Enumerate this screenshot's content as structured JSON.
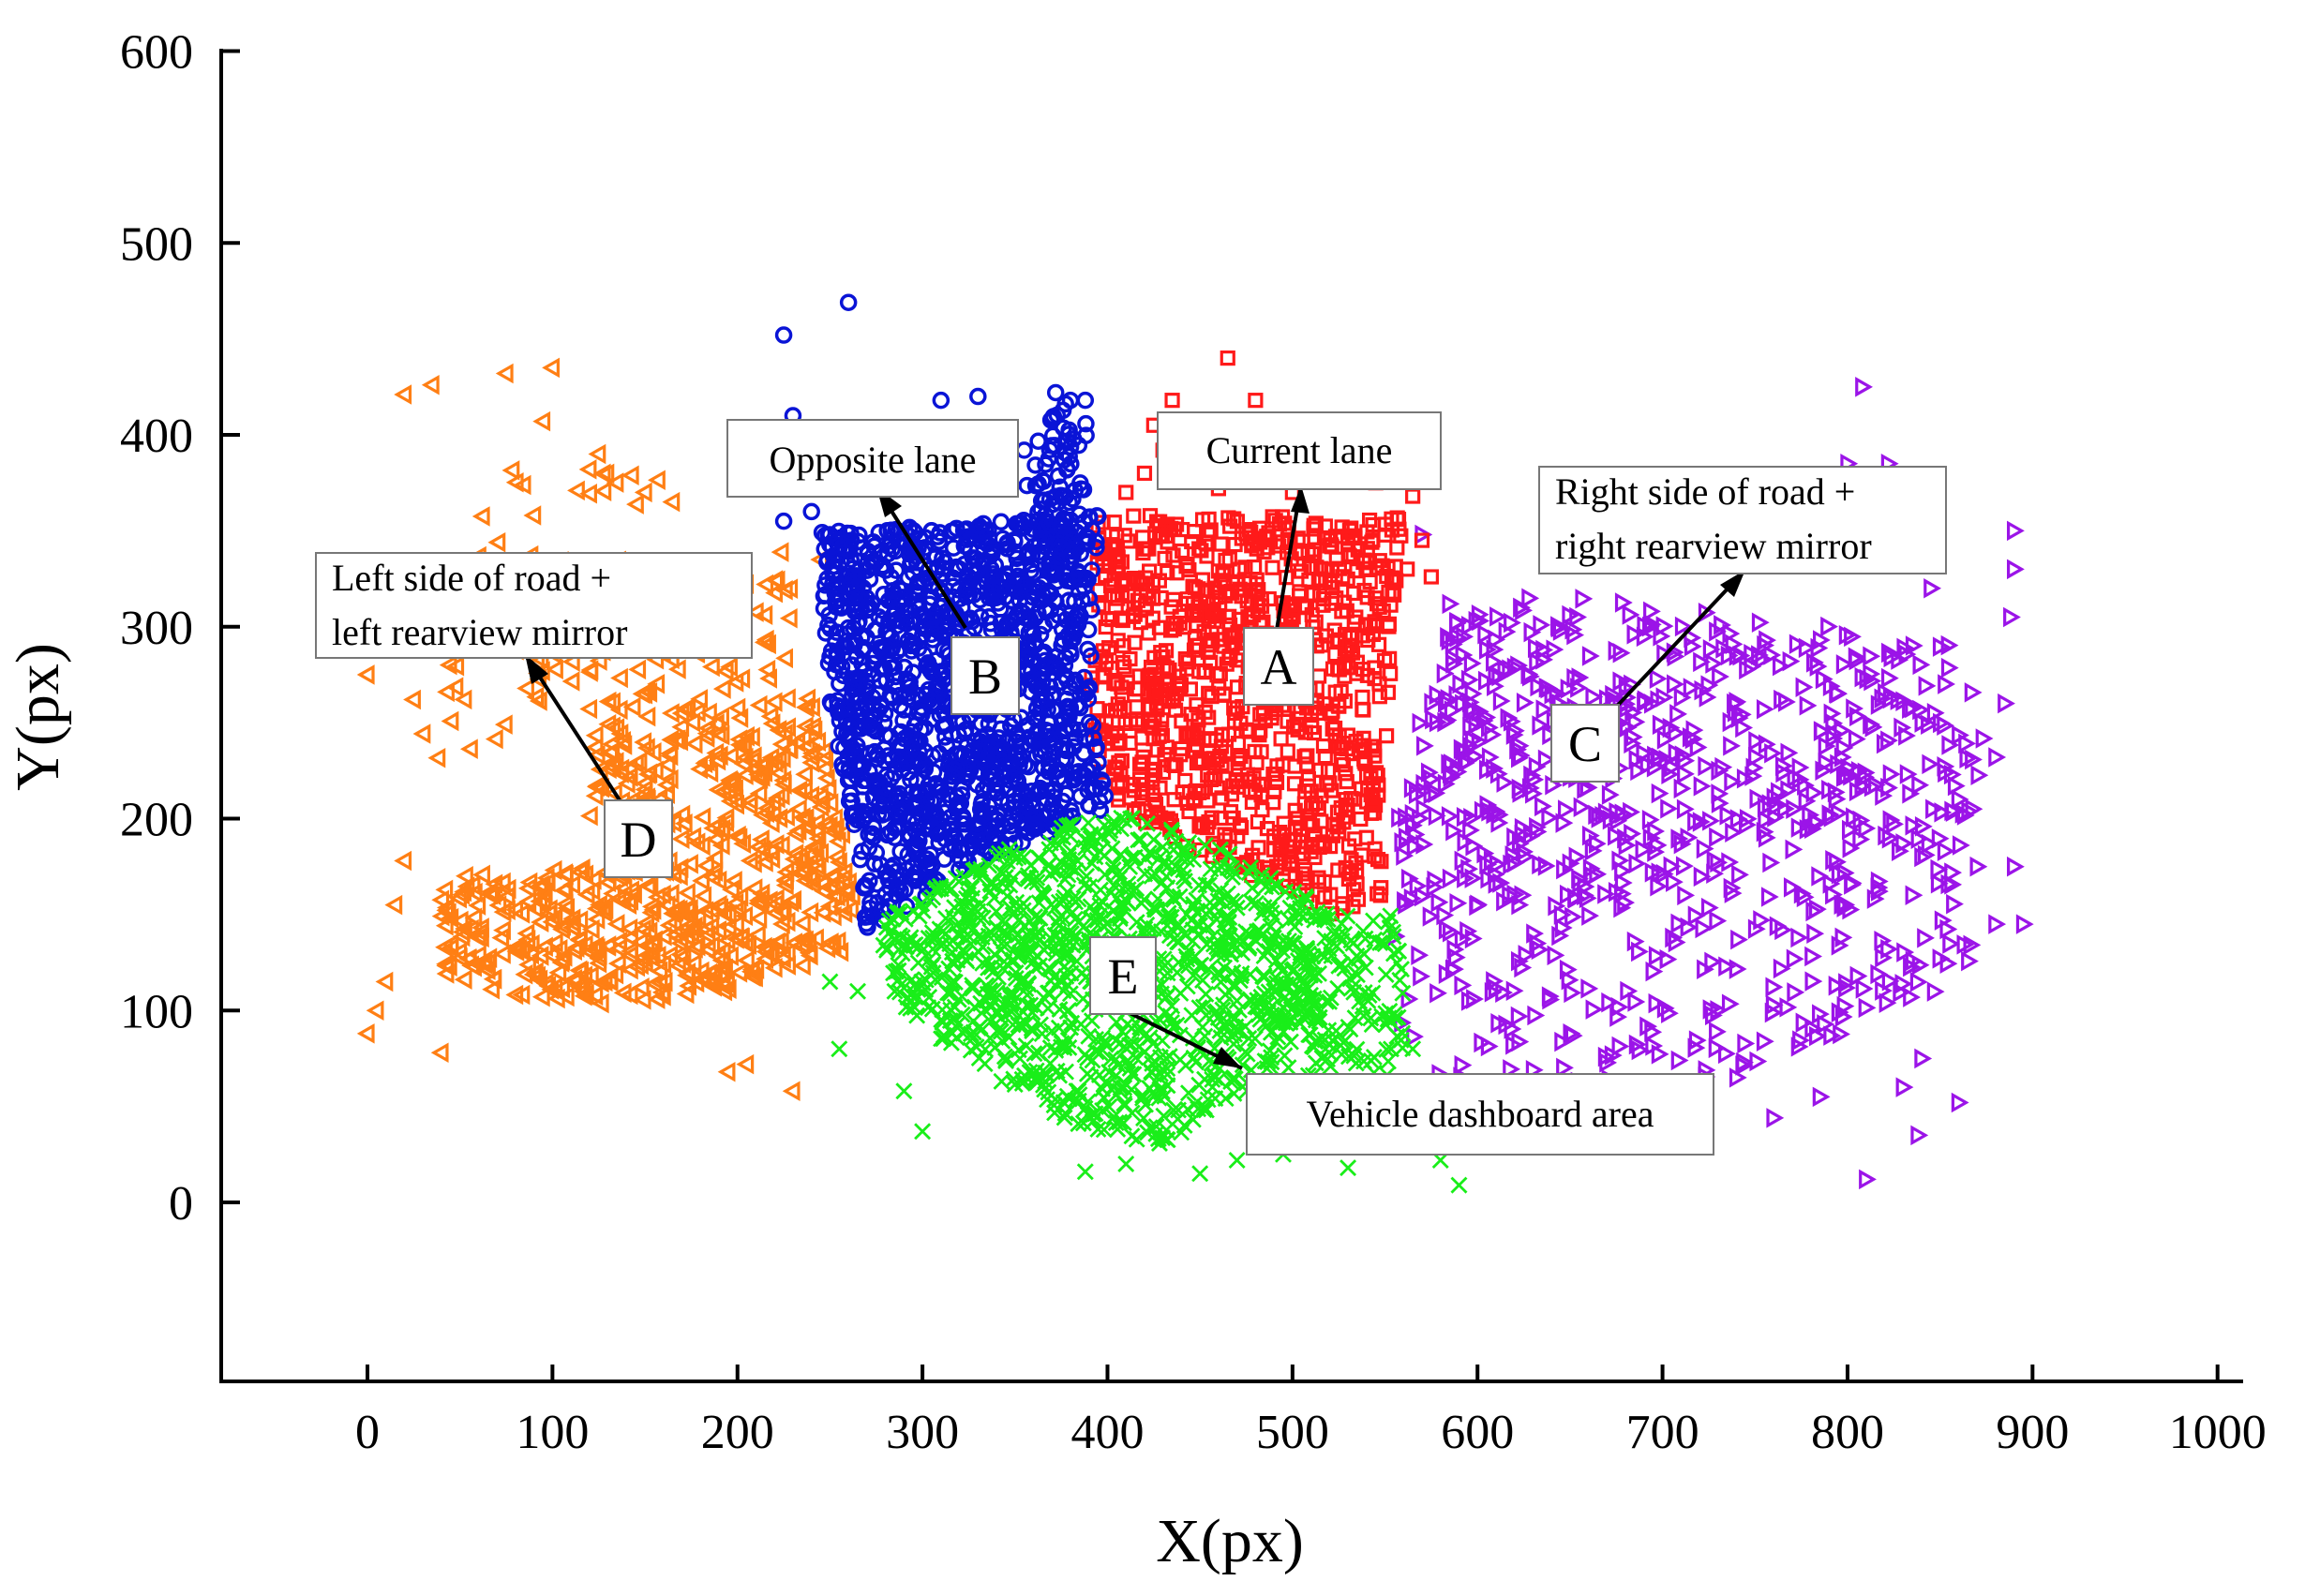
{
  "chart_data": {
    "type": "scatter",
    "title": "",
    "xlabel": "X(px)",
    "ylabel": "Y(px)",
    "xlim": [
      -80,
      1000
    ],
    "ylim": [
      -90,
      600
    ],
    "xticks": [
      0,
      100,
      200,
      300,
      400,
      500,
      600,
      700,
      800,
      900,
      1000
    ],
    "yticks": [
      0,
      100,
      200,
      300,
      400,
      500,
      600
    ],
    "grid": false,
    "legend": "none",
    "series": [
      {
        "key": "A",
        "marker": "square",
        "color": "#ff1a1a",
        "regions": [
          {
            "count": 950,
            "poly": [
              [
                395,
                358
              ],
              [
                560,
                358
              ],
              [
                548,
                205
              ],
              [
                548,
                150
              ],
              [
                520,
                150
              ],
              [
                400,
                205
              ],
              [
                390,
                260
              ]
            ]
          }
        ],
        "points": [
          [
            465,
            440
          ],
          [
            480,
            418
          ],
          [
            435,
            418
          ],
          [
            425,
            405
          ],
          [
            430,
            392
          ],
          [
            420,
            380
          ],
          [
            410,
            370
          ],
          [
            460,
            372
          ],
          [
            500,
            370
          ],
          [
            545,
            375
          ],
          [
            565,
            368
          ],
          [
            570,
            345
          ],
          [
            562,
            330
          ],
          [
            552,
            318
          ],
          [
            575,
            326
          ]
        ]
      },
      {
        "key": "B",
        "marker": "circle",
        "color": "#0a14d6",
        "regions": [
          {
            "count": 1400,
            "poly": [
              [
                245,
                350
              ],
              [
                395,
                358
              ],
              [
                390,
                260
              ],
              [
                400,
                205
              ],
              [
                335,
                180
              ],
              [
                270,
                140
              ],
              [
                262,
                200
              ],
              [
                248,
                270
              ]
            ]
          },
          {
            "count": 70,
            "poly": [
              [
                352,
                340
              ],
              [
                385,
                338
              ],
              [
                392,
                410
              ],
              [
                375,
                420
              ],
              [
                358,
                395
              ]
            ]
          }
        ],
        "points": [
          [
            260,
            469
          ],
          [
            225,
            452
          ],
          [
            230,
            410
          ],
          [
            310,
            418
          ],
          [
            330,
            420
          ],
          [
            340,
            400
          ],
          [
            355,
            392
          ],
          [
            372,
            422
          ],
          [
            380,
            418
          ],
          [
            388,
            418
          ],
          [
            225,
            355
          ],
          [
            240,
            360
          ],
          [
            250,
            348
          ]
        ]
      },
      {
        "key": "C",
        "marker": "triangle-right",
        "color": "#9b14e8",
        "regions": [
          {
            "count": 480,
            "poly": [
              [
                580,
                315
              ],
              [
                700,
                315
              ],
              [
                790,
                300
              ],
              [
                790,
                180
              ],
              [
                640,
                155
              ],
              [
                560,
                160
              ],
              [
                555,
                210
              ],
              [
                570,
                260
              ]
            ]
          },
          {
            "count": 240,
            "poly": [
              [
                555,
                160
              ],
              [
                640,
                155
              ],
              [
                790,
                180
              ],
              [
                860,
                175
              ],
              [
                870,
                120
              ],
              [
                780,
                80
              ],
              [
                650,
                40
              ],
              [
                570,
                50
              ],
              [
                555,
                100
              ]
            ]
          },
          {
            "count": 120,
            "poly": [
              [
                790,
                300
              ],
              [
                860,
                290
              ],
              [
                880,
                230
              ],
              [
                860,
                175
              ],
              [
                790,
                180
              ]
            ]
          }
        ],
        "points": [
          [
            808,
            425
          ],
          [
            800,
            385
          ],
          [
            822,
            385
          ],
          [
            890,
            350
          ],
          [
            890,
            330
          ],
          [
            888,
            305
          ],
          [
            845,
            320
          ],
          [
            570,
            348
          ],
          [
            640,
            360
          ],
          [
            860,
            210
          ],
          [
            895,
            145
          ],
          [
            880,
            145
          ],
          [
            890,
            175
          ],
          [
            870,
            175
          ],
          [
            810,
            12
          ],
          [
            830,
            60
          ],
          [
            840,
            75
          ],
          [
            860,
            52
          ],
          [
            838,
            35
          ],
          [
            785,
            55
          ],
          [
            740,
            65
          ],
          [
            760,
            44
          ],
          [
            880,
            232
          ],
          [
            885,
            260
          ]
        ]
      },
      {
        "key": "D",
        "marker": "triangle-left",
        "color": "#ff7f14",
        "regions": [
          {
            "count": 420,
            "poly": [
              [
                40,
                170
              ],
              [
                200,
                180
              ],
              [
                265,
                170
              ],
              [
                258,
                130
              ],
              [
                200,
                110
              ],
              [
                100,
                100
              ],
              [
                40,
                120
              ]
            ]
          },
          {
            "count": 250,
            "poly": [
              [
                120,
                250
              ],
              [
                240,
                265
              ],
              [
                255,
                215
              ],
              [
                260,
                160
              ],
              [
                200,
                180
              ],
              [
                120,
                200
              ]
            ]
          },
          {
            "count": 100,
            "poly": [
              [
                60,
                300
              ],
              [
                230,
                345
              ],
              [
                235,
                265
              ],
              [
                120,
                250
              ]
            ]
          },
          {
            "count": 45,
            "poly": [
              [
                20,
                300
              ],
              [
                80,
                390
              ],
              [
                160,
                390
              ],
              [
                150,
                300
              ],
              [
                80,
                240
              ],
              [
                20,
                200
              ]
            ]
          }
        ],
        "points": [
          [
            20,
            421
          ],
          [
            35,
            426
          ],
          [
            75,
            432
          ],
          [
            100,
            435
          ],
          [
            95,
            407
          ],
          [
            125,
            390
          ],
          [
            120,
            382
          ],
          [
            150,
            370
          ],
          [
            165,
            365
          ],
          [
            90,
            358
          ],
          [
            0,
            88
          ],
          [
            5,
            100
          ],
          [
            10,
            115
          ],
          [
            15,
            155
          ],
          [
            20,
            178
          ],
          [
            25,
            262
          ],
          [
            0,
            275
          ],
          [
            40,
            78
          ],
          [
            195,
            68
          ],
          [
            230,
            58
          ],
          [
            205,
            72
          ],
          [
            245,
            335
          ]
        ]
      },
      {
        "key": "E",
        "marker": "x",
        "color": "#19ee19",
        "regions": [
          {
            "count": 1100,
            "poly": [
              [
                275,
                145
              ],
              [
                335,
                180
              ],
              [
                400,
                205
              ],
              [
                450,
                190
              ],
              [
                510,
                160
              ],
              [
                525,
                140
              ],
              [
                520,
                100
              ],
              [
                480,
                60
              ],
              [
                430,
                30
              ],
              [
                380,
                40
              ],
              [
                330,
                70
              ],
              [
                290,
                100
              ]
            ]
          },
          {
            "count": 180,
            "poly": [
              [
                500,
                160
              ],
              [
                560,
                150
              ],
              [
                560,
                70
              ],
              [
                520,
                40
              ],
              [
                480,
                55
              ]
            ]
          }
        ],
        "points": [
          [
            590,
            9
          ],
          [
            580,
            22
          ],
          [
            575,
            40
          ],
          [
            570,
            60
          ],
          [
            530,
            18
          ],
          [
            495,
            25
          ],
          [
            470,
            22
          ],
          [
            450,
            15
          ],
          [
            410,
            20
          ],
          [
            388,
            16
          ],
          [
            300,
            37
          ],
          [
            290,
            58
          ],
          [
            265,
            110
          ],
          [
            250,
            115
          ],
          [
            285,
            110
          ],
          [
            255,
            80
          ],
          [
            555,
            98
          ],
          [
            565,
            80
          ]
        ]
      }
    ],
    "annotations": [
      {
        "text": "Opposite lane",
        "letter": "B"
      },
      {
        "text": "Current lane",
        "letter": "A"
      },
      {
        "text": "Right side of road + right rearview mirror",
        "line1": "Right side of road +",
        "line2": "right rearview mirror",
        "letter": "C"
      },
      {
        "text": "Left side of road + left rearview mirror",
        "line1": "Left side of road +",
        "line2": "left rearview mirror",
        "letter": "D"
      },
      {
        "text": "Vehicle dashboard area",
        "letter": "E"
      }
    ]
  }
}
